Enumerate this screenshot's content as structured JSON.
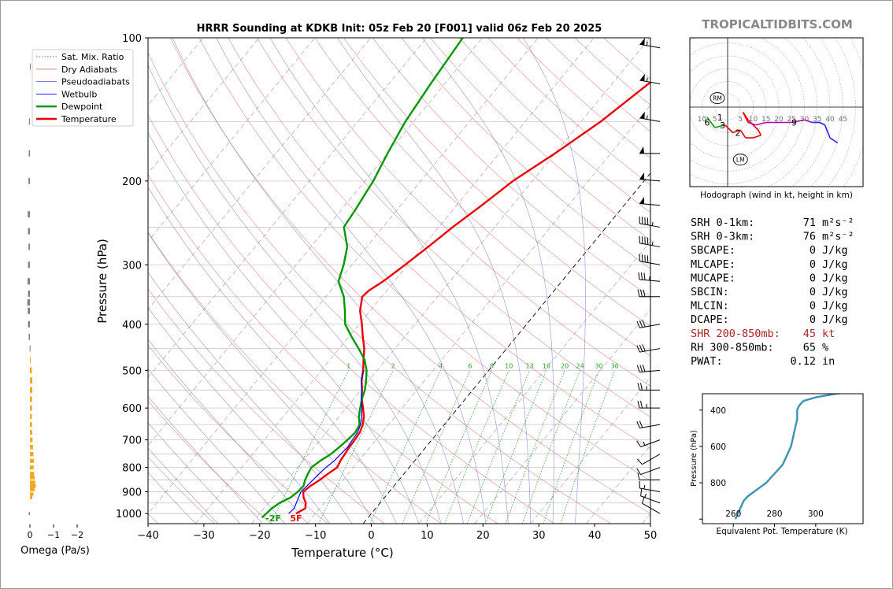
{
  "chart_data": [
    {
      "type": "line",
      "subtype": "skew-t log-p sounding",
      "title": "HRRR Sounding at KDKB Init: 05z Feb 20 [F001] valid 06z Feb 20 2025",
      "xlabel": "Temperature (°C)",
      "ylabel": "Pressure (hPa)",
      "xlim": [
        -40,
        50
      ],
      "ylim": [
        1050,
        100
      ],
      "yscale": "log",
      "x_ticks": [
        "−40",
        "−30",
        "−20",
        "−10",
        "0",
        "10",
        "20",
        "30",
        "40",
        "50"
      ],
      "y_ticks": [
        "100",
        "200",
        "300",
        "400",
        "500",
        "600",
        "700",
        "800",
        "900",
        "1000"
      ],
      "legend": {
        "placement": "top-left",
        "entries": [
          {
            "label": "Sat. Mix. Ratio",
            "color": "#2ca02c",
            "style": "dotted"
          },
          {
            "label": "Dry Adiabats",
            "color": "#e06d6d",
            "style": "solid"
          },
          {
            "label": "Pseudoadiabats",
            "color": "#6f6fd6",
            "style": "solid"
          },
          {
            "label": "Wetbulb",
            "color": "#0000ee",
            "style": "solid"
          },
          {
            "label": "Dewpoint",
            "color": "#009900",
            "style": "solid"
          },
          {
            "label": "Temperature",
            "color": "#ee0000",
            "style": "solid"
          }
        ]
      },
      "mixing_ratio_labels": [
        "1",
        "2",
        "4",
        "6",
        "8",
        "10",
        "13",
        "16",
        "20",
        "24",
        "30",
        "36"
      ],
      "series": [
        {
          "name": "Temperature",
          "color": "#ee0000",
          "points": [
            [
              -13.5,
              1000
            ],
            [
              -12.6,
              975
            ],
            [
              -13.3,
              950
            ],
            [
              -14.5,
              925
            ],
            [
              -15.4,
              900
            ],
            [
              -15.0,
              875
            ],
            [
              -14.2,
              850
            ],
            [
              -13.6,
              825
            ],
            [
              -12.9,
              800
            ],
            [
              -13.3,
              775
            ],
            [
              -13.5,
              750
            ],
            [
              -13.7,
              725
            ],
            [
              -13.8,
              700
            ],
            [
              -14.0,
              675
            ],
            [
              -14.6,
              650
            ],
            [
              -15.6,
              625
            ],
            [
              -17.0,
              600
            ],
            [
              -18.5,
              575
            ],
            [
              -19.8,
              550
            ],
            [
              -21.3,
              525
            ],
            [
              -22.5,
              500
            ],
            [
              -24.0,
              475
            ],
            [
              -25.5,
              450
            ],
            [
              -27.5,
              425
            ],
            [
              -29.5,
              400
            ],
            [
              -31.8,
              375
            ],
            [
              -33.5,
              350
            ],
            [
              -33.2,
              340
            ],
            [
              -32.0,
              325
            ],
            [
              -30.5,
              300
            ],
            [
              -29.0,
              275
            ],
            [
              -27.5,
              250
            ],
            [
              -25.5,
              225
            ],
            [
              -23.5,
              200
            ],
            [
              -20.0,
              175
            ],
            [
              -16.5,
              150
            ],
            [
              -13.5,
              125
            ],
            [
              -10.5,
              110
            ],
            [
              -9.0,
              100
            ]
          ]
        },
        {
          "name": "Dewpoint",
          "color": "#009900",
          "points": [
            [
              -19.0,
              1020
            ],
            [
              -18.6,
              975
            ],
            [
              -18.0,
              950
            ],
            [
              -16.8,
              925
            ],
            [
              -16.4,
              900
            ],
            [
              -16.2,
              875
            ],
            [
              -16.8,
              850
            ],
            [
              -17.2,
              825
            ],
            [
              -17.5,
              800
            ],
            [
              -16.9,
              775
            ],
            [
              -16.0,
              750
            ],
            [
              -15.5,
              725
            ],
            [
              -15.1,
              700
            ],
            [
              -14.8,
              675
            ],
            [
              -15.2,
              650
            ],
            [
              -16.5,
              625
            ],
            [
              -17.5,
              600
            ],
            [
              -18.5,
              575
            ],
            [
              -19.3,
              550
            ],
            [
              -20.5,
              525
            ],
            [
              -21.9,
              500
            ],
            [
              -23.8,
              475
            ],
            [
              -26.5,
              450
            ],
            [
              -29.5,
              425
            ],
            [
              -32.5,
              400
            ],
            [
              -34.5,
              375
            ],
            [
              -36.8,
              350
            ],
            [
              -40.0,
              325
            ],
            [
              -41.5,
              300
            ],
            [
              -43.5,
              275
            ],
            [
              -47.0,
              250
            ],
            [
              -47.5,
              230
            ],
            [
              -48.5,
              200
            ],
            [
              -50.0,
              175
            ],
            [
              -51.5,
              150
            ],
            [
              -52.5,
              125
            ],
            [
              -53.5,
              100
            ]
          ]
        },
        {
          "name": "Wetbulb",
          "color": "#0000ee",
          "points": [
            [
              -14.8,
              1000
            ],
            [
              -14.6,
              975
            ],
            [
              -15.0,
              950
            ],
            [
              -15.4,
              925
            ],
            [
              -15.8,
              900
            ],
            [
              -15.6,
              875
            ],
            [
              -15.4,
              850
            ],
            [
              -15.2,
              825
            ],
            [
              -14.9,
              800
            ],
            [
              -14.4,
              775
            ],
            [
              -14.2,
              750
            ],
            [
              -14.0,
              725
            ],
            [
              -14.2,
              700
            ],
            [
              -14.4,
              675
            ],
            [
              -15.0,
              650
            ],
            [
              -16.0,
              625
            ],
            [
              -17.2,
              600
            ],
            [
              -18.6,
              575
            ],
            [
              -19.9,
              550
            ],
            [
              -21.3,
              525
            ],
            [
              -22.5,
              500
            ]
          ]
        }
      ],
      "surface_labels": {
        "dewpoint": "-2F",
        "temperature": "5F"
      }
    },
    {
      "type": "bar",
      "subtype": "omega profile (horizontal bars)",
      "xlabel": "Omega (Pa/s)",
      "x_ticks": [
        "0",
        "−1",
        "−2"
      ],
      "points": [
        [
          -0.05,
          1000
        ],
        [
          0.1,
          925
        ],
        [
          0.15,
          910
        ],
        [
          0.2,
          890
        ],
        [
          0.25,
          875
        ],
        [
          0.22,
          860
        ],
        [
          0.2,
          840
        ],
        [
          0.18,
          825
        ],
        [
          0.16,
          800
        ],
        [
          0.17,
          775
        ],
        [
          0.15,
          750
        ],
        [
          0.13,
          725
        ],
        [
          0.11,
          700
        ],
        [
          0.1,
          675
        ],
        [
          0.09,
          650
        ],
        [
          0.08,
          625
        ],
        [
          0.09,
          600
        ],
        [
          0.09,
          575
        ],
        [
          0.1,
          550
        ],
        [
          0.1,
          525
        ],
        [
          0.08,
          500
        ],
        [
          0.01,
          475
        ],
        [
          -0.01,
          450
        ],
        [
          -0.05,
          425
        ],
        [
          -0.08,
          400
        ],
        [
          -0.09,
          375
        ],
        [
          -0.11,
          360
        ],
        [
          -0.08,
          345
        ],
        [
          -0.1,
          325
        ],
        [
          -0.08,
          300
        ],
        [
          -0.06,
          275
        ],
        [
          -0.08,
          255
        ],
        [
          -0.09,
          235
        ],
        [
          -0.06,
          200
        ],
        [
          -0.05,
          175
        ],
        [
          -0.04,
          150
        ],
        [
          0.0,
          115
        ]
      ]
    },
    {
      "type": "line",
      "subtype": "hodograph",
      "caption": "Hodograph (wind in kt, height in km)",
      "ring_labels": [
        "10",
        "5",
        "5",
        "10",
        "15",
        "20",
        "25",
        "30",
        "35",
        "40",
        "45"
      ],
      "storm_motion_labels": [
        "RM",
        "LM"
      ],
      "height_labels": [
        "1",
        "2",
        "3",
        "6",
        "9"
      ],
      "points": [
        [
          -8,
          -4
        ],
        [
          -5,
          -8
        ],
        [
          -1,
          -7
        ],
        [
          2,
          -10
        ],
        [
          5,
          -9
        ],
        [
          7,
          -12
        ],
        [
          10,
          -12
        ],
        [
          13,
          -11
        ],
        [
          12,
          -9
        ],
        [
          8,
          -5
        ],
        [
          6,
          -2
        ],
        [
          8,
          -6
        ],
        [
          11,
          -7
        ],
        [
          15,
          -6
        ],
        [
          20,
          -6
        ],
        [
          25,
          -6
        ],
        [
          30,
          -5
        ],
        [
          33,
          -6
        ],
        [
          36,
          -6
        ],
        [
          38,
          -7
        ],
        [
          40,
          -12
        ],
        [
          43,
          -14
        ]
      ]
    },
    {
      "type": "line",
      "subtype": "equivalent potential temperature profile",
      "xlabel": "Equivalent Pot. Temperature (K)",
      "ylabel": "Pressure (hPa)",
      "x_ticks": [
        "260",
        "280",
        "300"
      ],
      "y_ticks": [
        "400",
        "600",
        "800"
      ],
      "color": "#3a93b3",
      "points": [
        [
          261,
          1000
        ],
        [
          262,
          975
        ],
        [
          263,
          950
        ],
        [
          264,
          925
        ],
        [
          265,
          900
        ],
        [
          267,
          875
        ],
        [
          270,
          850
        ],
        [
          273,
          825
        ],
        [
          276,
          800
        ],
        [
          278,
          775
        ],
        [
          280,
          750
        ],
        [
          282,
          725
        ],
        [
          284,
          700
        ],
        [
          286,
          650
        ],
        [
          288,
          600
        ],
        [
          289,
          550
        ],
        [
          290,
          500
        ],
        [
          291,
          450
        ],
        [
          291,
          400
        ],
        [
          292,
          375
        ],
        [
          294,
          350
        ],
        [
          300,
          330
        ],
        [
          310,
          310
        ],
        [
          325,
          290
        ]
      ]
    }
  ],
  "site_label": "TROPICALTIDBITS.COM",
  "stats": [
    {
      "label": "SRH 0-1km:",
      "value": "71",
      "unit": "m²s⁻²",
      "color": "#000000"
    },
    {
      "label": "SRH 0-3km:",
      "value": "76",
      "unit": "m²s⁻²",
      "color": "#000000"
    },
    {
      "label": "SBCAPE:",
      "value": "0",
      "unit": "J/kg",
      "color": "#000000"
    },
    {
      "label": "MLCAPE:",
      "value": "0",
      "unit": "J/kg",
      "color": "#000000"
    },
    {
      "label": "MUCAPE:",
      "value": "0",
      "unit": "J/kg",
      "color": "#000000"
    },
    {
      "label": "SBCIN:",
      "value": "0",
      "unit": "J/kg",
      "color": "#000000"
    },
    {
      "label": "MLCIN:",
      "value": "0",
      "unit": "J/kg",
      "color": "#000000"
    },
    {
      "label": "DCAPE:",
      "value": "0",
      "unit": "J/kg",
      "color": "#000000"
    },
    {
      "label": "SHR 200-850mb:",
      "value": "45",
      "unit": "kt",
      "color": "#b22222"
    },
    {
      "label": "RH 300-850mb:",
      "value": "65",
      "unit": "%",
      "color": "#000000"
    },
    {
      "label": "PWAT:",
      "value": "0.12",
      "unit": "in",
      "color": "#000000"
    }
  ],
  "wind_barbs": [
    {
      "p": 1000,
      "dir": 300,
      "spd": 10
    },
    {
      "p": 950,
      "dir": 290,
      "spd": 15
    },
    {
      "p": 900,
      "dir": 280,
      "spd": 15
    },
    {
      "p": 850,
      "dir": 270,
      "spd": 10
    },
    {
      "p": 800,
      "dir": 250,
      "spd": 10
    },
    {
      "p": 750,
      "dir": 240,
      "spd": 10
    },
    {
      "p": 700,
      "dir": 250,
      "spd": 15
    },
    {
      "p": 650,
      "dir": 260,
      "spd": 20
    },
    {
      "p": 600,
      "dir": 270,
      "spd": 25
    },
    {
      "p": 550,
      "dir": 270,
      "spd": 25
    },
    {
      "p": 500,
      "dir": 265,
      "spd": 30
    },
    {
      "p": 450,
      "dir": 260,
      "spd": 30
    },
    {
      "p": 400,
      "dir": 260,
      "spd": 30
    },
    {
      "p": 350,
      "dir": 270,
      "spd": 30
    },
    {
      "p": 325,
      "dir": 275,
      "spd": 35
    },
    {
      "p": 300,
      "dir": 280,
      "spd": 40
    },
    {
      "p": 275,
      "dir": 280,
      "spd": 45
    },
    {
      "p": 250,
      "dir": 280,
      "spd": 45
    },
    {
      "p": 225,
      "dir": 275,
      "spd": 50
    },
    {
      "p": 200,
      "dir": 275,
      "spd": 50
    },
    {
      "p": 175,
      "dir": 270,
      "spd": 50
    },
    {
      "p": 150,
      "dir": 280,
      "spd": 55
    },
    {
      "p": 125,
      "dir": 280,
      "spd": 55
    },
    {
      "p": 105,
      "dir": 280,
      "spd": 55
    }
  ]
}
